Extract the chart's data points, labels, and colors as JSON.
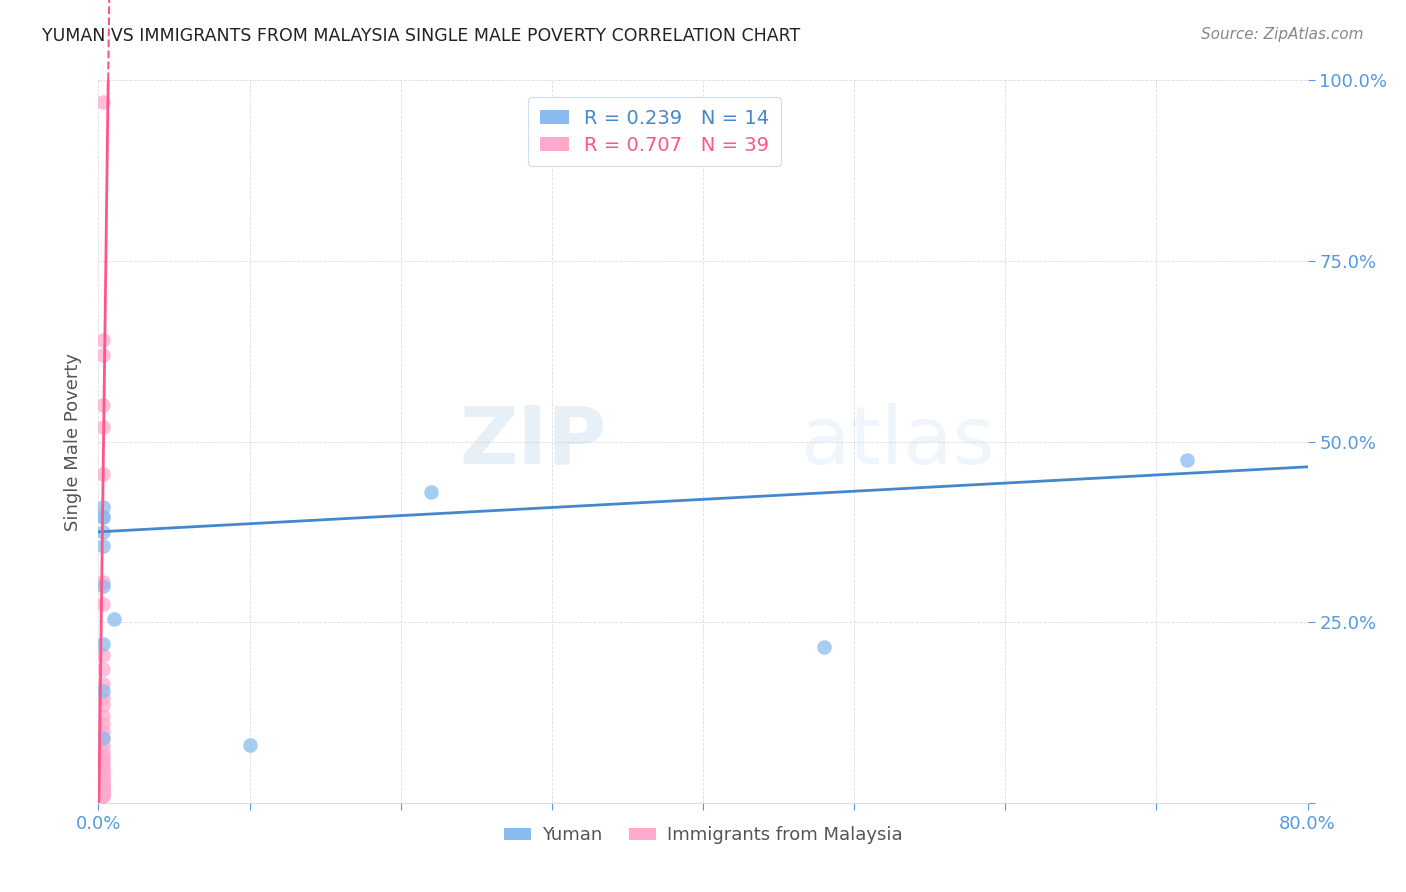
{
  "title": "YUMAN VS IMMIGRANTS FROM MALAYSIA SINGLE MALE POVERTY CORRELATION CHART",
  "source": "Source: ZipAtlas.com",
  "ylabel": "Single Male Poverty",
  "xlim": [
    0.0,
    0.8
  ],
  "ylim": [
    0.0,
    1.0
  ],
  "x_tick_positions": [
    0.0,
    0.1,
    0.2,
    0.3,
    0.4,
    0.5,
    0.6,
    0.7,
    0.8
  ],
  "x_tick_labels": [
    "0.0%",
    "",
    "",
    "",
    "",
    "",
    "",
    "",
    "80.0%"
  ],
  "y_tick_positions": [
    0.0,
    0.25,
    0.5,
    0.75,
    1.0
  ],
  "y_tick_labels": [
    "",
    "25.0%",
    "50.0%",
    "75.0%",
    "100.0%"
  ],
  "yuman_x": [
    0.003,
    0.003,
    0.003,
    0.003,
    0.003,
    0.003,
    0.003,
    0.003,
    0.003,
    0.01,
    0.1,
    0.22,
    0.48,
    0.72
  ],
  "yuman_y": [
    0.355,
    0.375,
    0.395,
    0.41,
    0.395,
    0.3,
    0.22,
    0.155,
    0.09,
    0.255,
    0.08,
    0.43,
    0.215,
    0.475
  ],
  "malaysia_x": [
    0.003,
    0.003,
    0.003,
    0.003,
    0.003,
    0.003,
    0.003,
    0.003,
    0.003,
    0.003,
    0.003,
    0.003,
    0.003,
    0.003,
    0.003,
    0.003,
    0.003,
    0.003,
    0.003,
    0.003,
    0.003,
    0.003,
    0.003,
    0.003,
    0.003,
    0.003,
    0.003,
    0.003,
    0.003,
    0.003,
    0.003,
    0.003,
    0.003,
    0.003,
    0.003,
    0.003,
    0.003,
    0.003,
    0.003
  ],
  "malaysia_y": [
    0.97,
    0.64,
    0.62,
    0.55,
    0.52,
    0.455,
    0.305,
    0.275,
    0.205,
    0.185,
    0.165,
    0.145,
    0.135,
    0.12,
    0.11,
    0.1,
    0.09,
    0.08,
    0.07,
    0.065,
    0.06,
    0.055,
    0.05,
    0.045,
    0.04,
    0.038,
    0.033,
    0.03,
    0.028,
    0.025,
    0.022,
    0.02,
    0.018,
    0.016,
    0.015,
    0.013,
    0.012,
    0.01,
    0.009
  ],
  "yuman_R": 0.239,
  "yuman_N": 14,
  "malaysia_R": 0.707,
  "malaysia_N": 39,
  "yuman_color": "#88BBEE",
  "malaysia_color": "#FFAACC",
  "yuman_line_color": "#4488CC",
  "malaysia_line_color": "#FF5588",
  "background_color": "#FFFFFF",
  "watermark_zip": "ZIP",
  "watermark_atlas": "atlas",
  "title_color": "#222222",
  "axis_tick_color": "#5599DD",
  "ylabel_color": "#555555",
  "grid_color": "#DDDDDD",
  "source_color": "#888888",
  "legend_text_color_1": "#4488CC",
  "legend_text_color_2": "#FF5588",
  "bottom_legend_color": "#555555"
}
